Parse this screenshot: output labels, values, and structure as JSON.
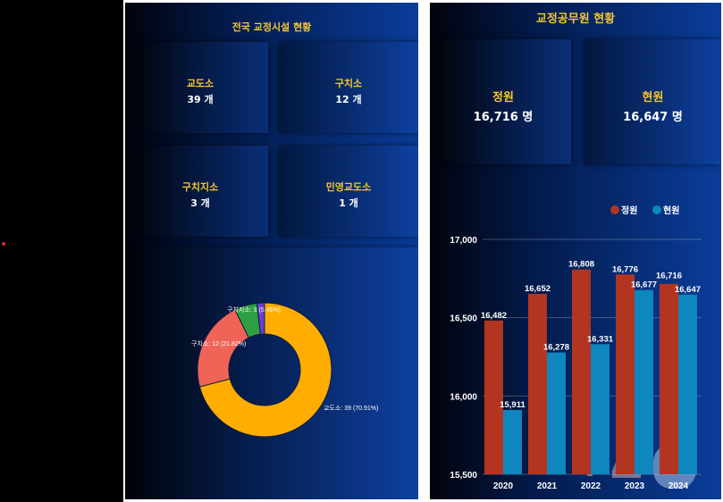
{
  "left_panel": {
    "title": "전국 교정시설 현황",
    "cards": [
      {
        "label": "교도소",
        "value": "39 개"
      },
      {
        "label": "구치소",
        "value": "12 개"
      },
      {
        "label": "구치지소",
        "value": "3 개"
      },
      {
        "label": "민영교도소",
        "value": "1 개"
      }
    ]
  },
  "right_panel": {
    "title": "교정공무원 현황",
    "cards": [
      {
        "label": "정원",
        "value": "16,716 명"
      },
      {
        "label": "현원",
        "value": "16,647 명"
      }
    ]
  },
  "watermark": "뉴스1",
  "chart_data": [
    {
      "type": "pie",
      "variant": "donut",
      "categories": [
        "교도소",
        "구치소",
        "구치지소",
        "민영교도소"
      ],
      "values": [
        39,
        12,
        3,
        1
      ],
      "data_labels": [
        "교도소: 39 (70.91%)",
        "구치소: 12 (21.82%)",
        "구치지소: 3 (5.45%)",
        ""
      ],
      "colors": [
        "#ffad00",
        "#ef6457",
        "#2ea043",
        "#6a3fd0"
      ]
    },
    {
      "type": "bar",
      "categories": [
        "2020",
        "2021",
        "2022",
        "2023",
        "2024"
      ],
      "series": [
        {
          "name": "정원",
          "values": [
            16482,
            16652,
            16808,
            16776,
            16716
          ],
          "color": "#b23522"
        },
        {
          "name": "현원",
          "values": [
            15911,
            16278,
            16331,
            16677,
            16647
          ],
          "color": "#0e86be"
        }
      ],
      "data_labels": [
        [
          "16,482",
          "16,652",
          "16,808",
          "16,776",
          "16,716"
        ],
        [
          "15,911",
          "16,278",
          "16,331",
          "16,677",
          "16,647"
        ]
      ],
      "yticks": [
        "15,500",
        "16,000",
        "16,500",
        "17,000"
      ],
      "ylim": [
        15500,
        17000
      ],
      "grid": true,
      "legend": "top-right"
    }
  ]
}
